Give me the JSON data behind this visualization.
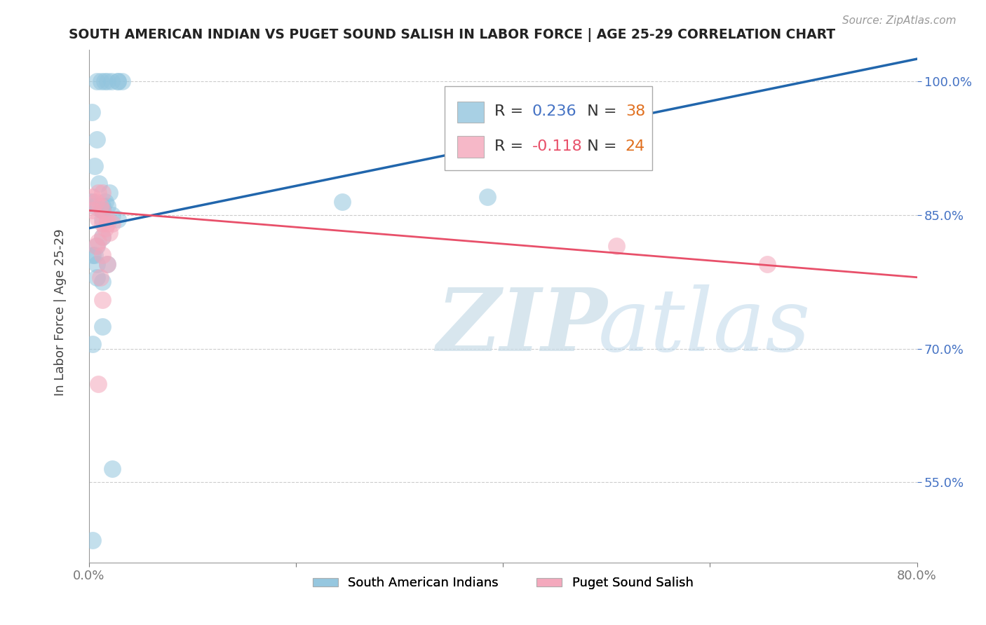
{
  "title": "SOUTH AMERICAN INDIAN VS PUGET SOUND SALISH IN LABOR FORCE | AGE 25-29 CORRELATION CHART",
  "source": "Source: ZipAtlas.com",
  "ylabel_label": "In Labor Force | Age 25-29",
  "xmin": 0.0,
  "xmax": 80.0,
  "ymin": 46.0,
  "ymax": 103.5,
  "yticks": [
    55.0,
    70.0,
    85.0,
    100.0
  ],
  "ytick_labels": [
    "55.0%",
    "70.0%",
    "85.0%",
    "100.0%"
  ],
  "xtick_positions": [
    0.0,
    20.0,
    40.0,
    60.0,
    80.0
  ],
  "xtick_labels": [
    "0.0%",
    "",
    "",
    "",
    "80.0%"
  ],
  "blue_R": 0.236,
  "blue_N": 38,
  "pink_R": -0.118,
  "pink_N": 24,
  "blue_label": "South American Indians",
  "pink_label": "Puget Sound Salish",
  "blue_color": "#92c5de",
  "pink_color": "#f4a6bb",
  "blue_line_color": "#2166ac",
  "pink_line_color": "#e8506a",
  "blue_scatter_x": [
    1.2,
    2.2,
    2.8,
    1.8,
    0.8,
    1.5,
    3.2,
    0.3,
    0.8,
    0.6,
    1.0,
    2.0,
    1.6,
    0.4,
    0.2,
    0.6,
    1.3,
    1.8,
    1.3,
    1.3,
    2.3,
    1.3,
    2.8,
    1.3,
    0.8,
    0.4,
    0.6,
    0.8,
    2.8,
    24.5,
    38.5,
    1.8,
    0.8,
    1.3,
    1.3,
    0.4,
    2.3,
    0.4
  ],
  "blue_scatter_y": [
    100.0,
    100.0,
    100.0,
    100.0,
    100.0,
    100.0,
    100.0,
    96.5,
    93.5,
    90.5,
    88.5,
    87.5,
    86.5,
    86.5,
    86.5,
    86.0,
    86.0,
    86.0,
    85.5,
    85.5,
    85.0,
    84.5,
    84.5,
    82.5,
    81.5,
    80.5,
    80.5,
    79.5,
    100.0,
    86.5,
    87.0,
    79.5,
    78.0,
    77.5,
    72.5,
    70.5,
    56.5,
    48.5
  ],
  "pink_scatter_x": [
    0.4,
    0.9,
    1.3,
    0.7,
    1.1,
    0.4,
    1.3,
    1.8,
    0.9,
    1.3,
    1.8,
    2.3,
    1.6,
    2.0,
    1.3,
    0.9,
    0.7,
    1.3,
    1.8,
    1.1,
    1.3,
    51.0,
    65.5,
    0.9
  ],
  "pink_scatter_y": [
    87.0,
    87.5,
    87.5,
    86.5,
    86.0,
    85.5,
    85.5,
    84.5,
    84.5,
    84.0,
    84.0,
    84.0,
    83.5,
    83.0,
    82.5,
    82.0,
    81.5,
    80.5,
    79.5,
    78.0,
    75.5,
    81.5,
    79.5,
    66.0
  ],
  "blue_trend_x": [
    0.0,
    80.0
  ],
  "blue_trend_y": [
    83.5,
    102.5
  ],
  "pink_trend_x": [
    0.0,
    80.0
  ],
  "pink_trend_y": [
    85.5,
    78.0
  ]
}
